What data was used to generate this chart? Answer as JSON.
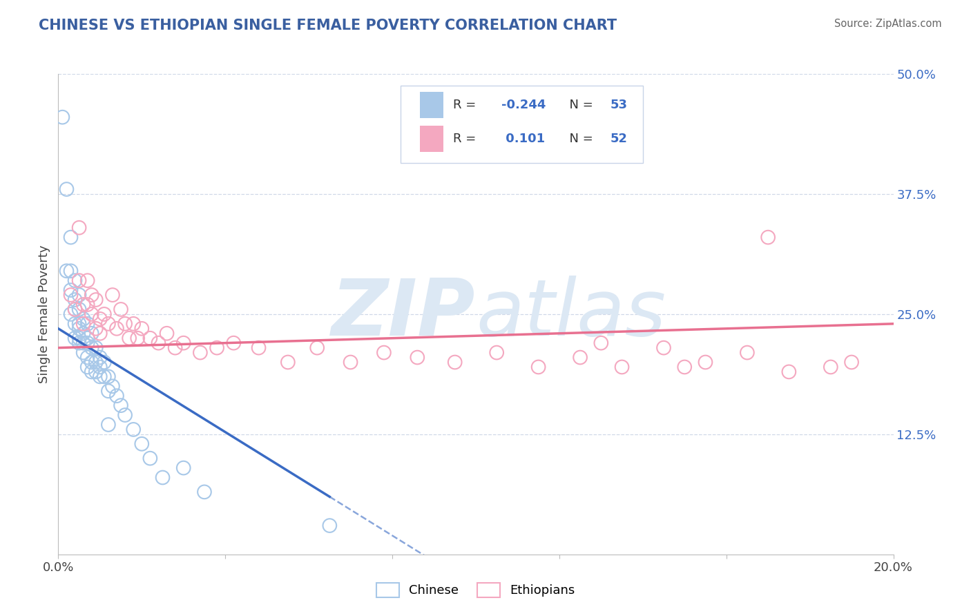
{
  "title": "CHINESE VS ETHIOPIAN SINGLE FEMALE POVERTY CORRELATION CHART",
  "source_text": "Source: ZipAtlas.com",
  "ylabel": "Single Female Poverty",
  "right_yticklabels": [
    "",
    "12.5%",
    "25.0%",
    "37.5%",
    "50.0%"
  ],
  "xlim": [
    0.0,
    0.2
  ],
  "ylim": [
    0.0,
    0.5
  ],
  "legend_r_chinese": "-0.244",
  "legend_n_chinese": "53",
  "legend_r_ethiopian": "0.101",
  "legend_n_ethiopian": "52",
  "chinese_color": "#a8c8e8",
  "ethiopian_color": "#f4a8c0",
  "chinese_line_color": "#3a6bc4",
  "ethiopian_line_color": "#e87090",
  "watermark_color": "#dce8f4",
  "background_color": "#ffffff",
  "title_color": "#3a5fa0",
  "legend_value_color": "#3a6bc4",
  "grid_color": "#d0d8e8",
  "chinese_points_x": [
    0.001,
    0.002,
    0.002,
    0.003,
    0.003,
    0.003,
    0.003,
    0.004,
    0.004,
    0.004,
    0.004,
    0.004,
    0.005,
    0.005,
    0.005,
    0.005,
    0.005,
    0.005,
    0.006,
    0.006,
    0.006,
    0.006,
    0.007,
    0.007,
    0.007,
    0.007,
    0.007,
    0.008,
    0.008,
    0.008,
    0.008,
    0.009,
    0.009,
    0.009,
    0.01,
    0.01,
    0.01,
    0.011,
    0.011,
    0.012,
    0.012,
    0.013,
    0.014,
    0.015,
    0.016,
    0.018,
    0.02,
    0.022,
    0.025,
    0.03,
    0.035,
    0.065,
    0.012
  ],
  "chinese_points_y": [
    0.455,
    0.38,
    0.295,
    0.33,
    0.295,
    0.275,
    0.25,
    0.285,
    0.265,
    0.255,
    0.24,
    0.225,
    0.27,
    0.255,
    0.24,
    0.235,
    0.225,
    0.22,
    0.245,
    0.23,
    0.22,
    0.21,
    0.24,
    0.225,
    0.22,
    0.205,
    0.195,
    0.23,
    0.215,
    0.2,
    0.19,
    0.215,
    0.2,
    0.19,
    0.205,
    0.195,
    0.185,
    0.2,
    0.185,
    0.185,
    0.17,
    0.175,
    0.165,
    0.155,
    0.145,
    0.13,
    0.115,
    0.1,
    0.08,
    0.09,
    0.065,
    0.03,
    0.135
  ],
  "ethiopian_points_x": [
    0.003,
    0.004,
    0.005,
    0.005,
    0.006,
    0.006,
    0.007,
    0.007,
    0.008,
    0.008,
    0.009,
    0.009,
    0.01,
    0.01,
    0.011,
    0.012,
    0.013,
    0.014,
    0.015,
    0.016,
    0.017,
    0.018,
    0.019,
    0.02,
    0.022,
    0.024,
    0.026,
    0.028,
    0.03,
    0.034,
    0.038,
    0.042,
    0.048,
    0.055,
    0.062,
    0.07,
    0.078,
    0.086,
    0.095,
    0.105,
    0.115,
    0.125,
    0.135,
    0.145,
    0.155,
    0.165,
    0.175,
    0.185,
    0.19,
    0.15,
    0.13,
    0.17
  ],
  "ethiopian_points_y": [
    0.27,
    0.255,
    0.285,
    0.34,
    0.26,
    0.24,
    0.285,
    0.26,
    0.25,
    0.27,
    0.235,
    0.265,
    0.245,
    0.23,
    0.25,
    0.24,
    0.27,
    0.235,
    0.255,
    0.24,
    0.225,
    0.24,
    0.225,
    0.235,
    0.225,
    0.22,
    0.23,
    0.215,
    0.22,
    0.21,
    0.215,
    0.22,
    0.215,
    0.2,
    0.215,
    0.2,
    0.21,
    0.205,
    0.2,
    0.21,
    0.195,
    0.205,
    0.195,
    0.215,
    0.2,
    0.21,
    0.19,
    0.195,
    0.2,
    0.195,
    0.22,
    0.33
  ],
  "chinese_line_x0": 0.0,
  "chinese_line_x1": 0.065,
  "chinese_line_x_dash_end": 0.1,
  "chinese_line_y0": 0.235,
  "chinese_line_y1": 0.06,
  "ethiopian_line_x0": 0.0,
  "ethiopian_line_x1": 0.2,
  "ethiopian_line_y0": 0.215,
  "ethiopian_line_y1": 0.24
}
